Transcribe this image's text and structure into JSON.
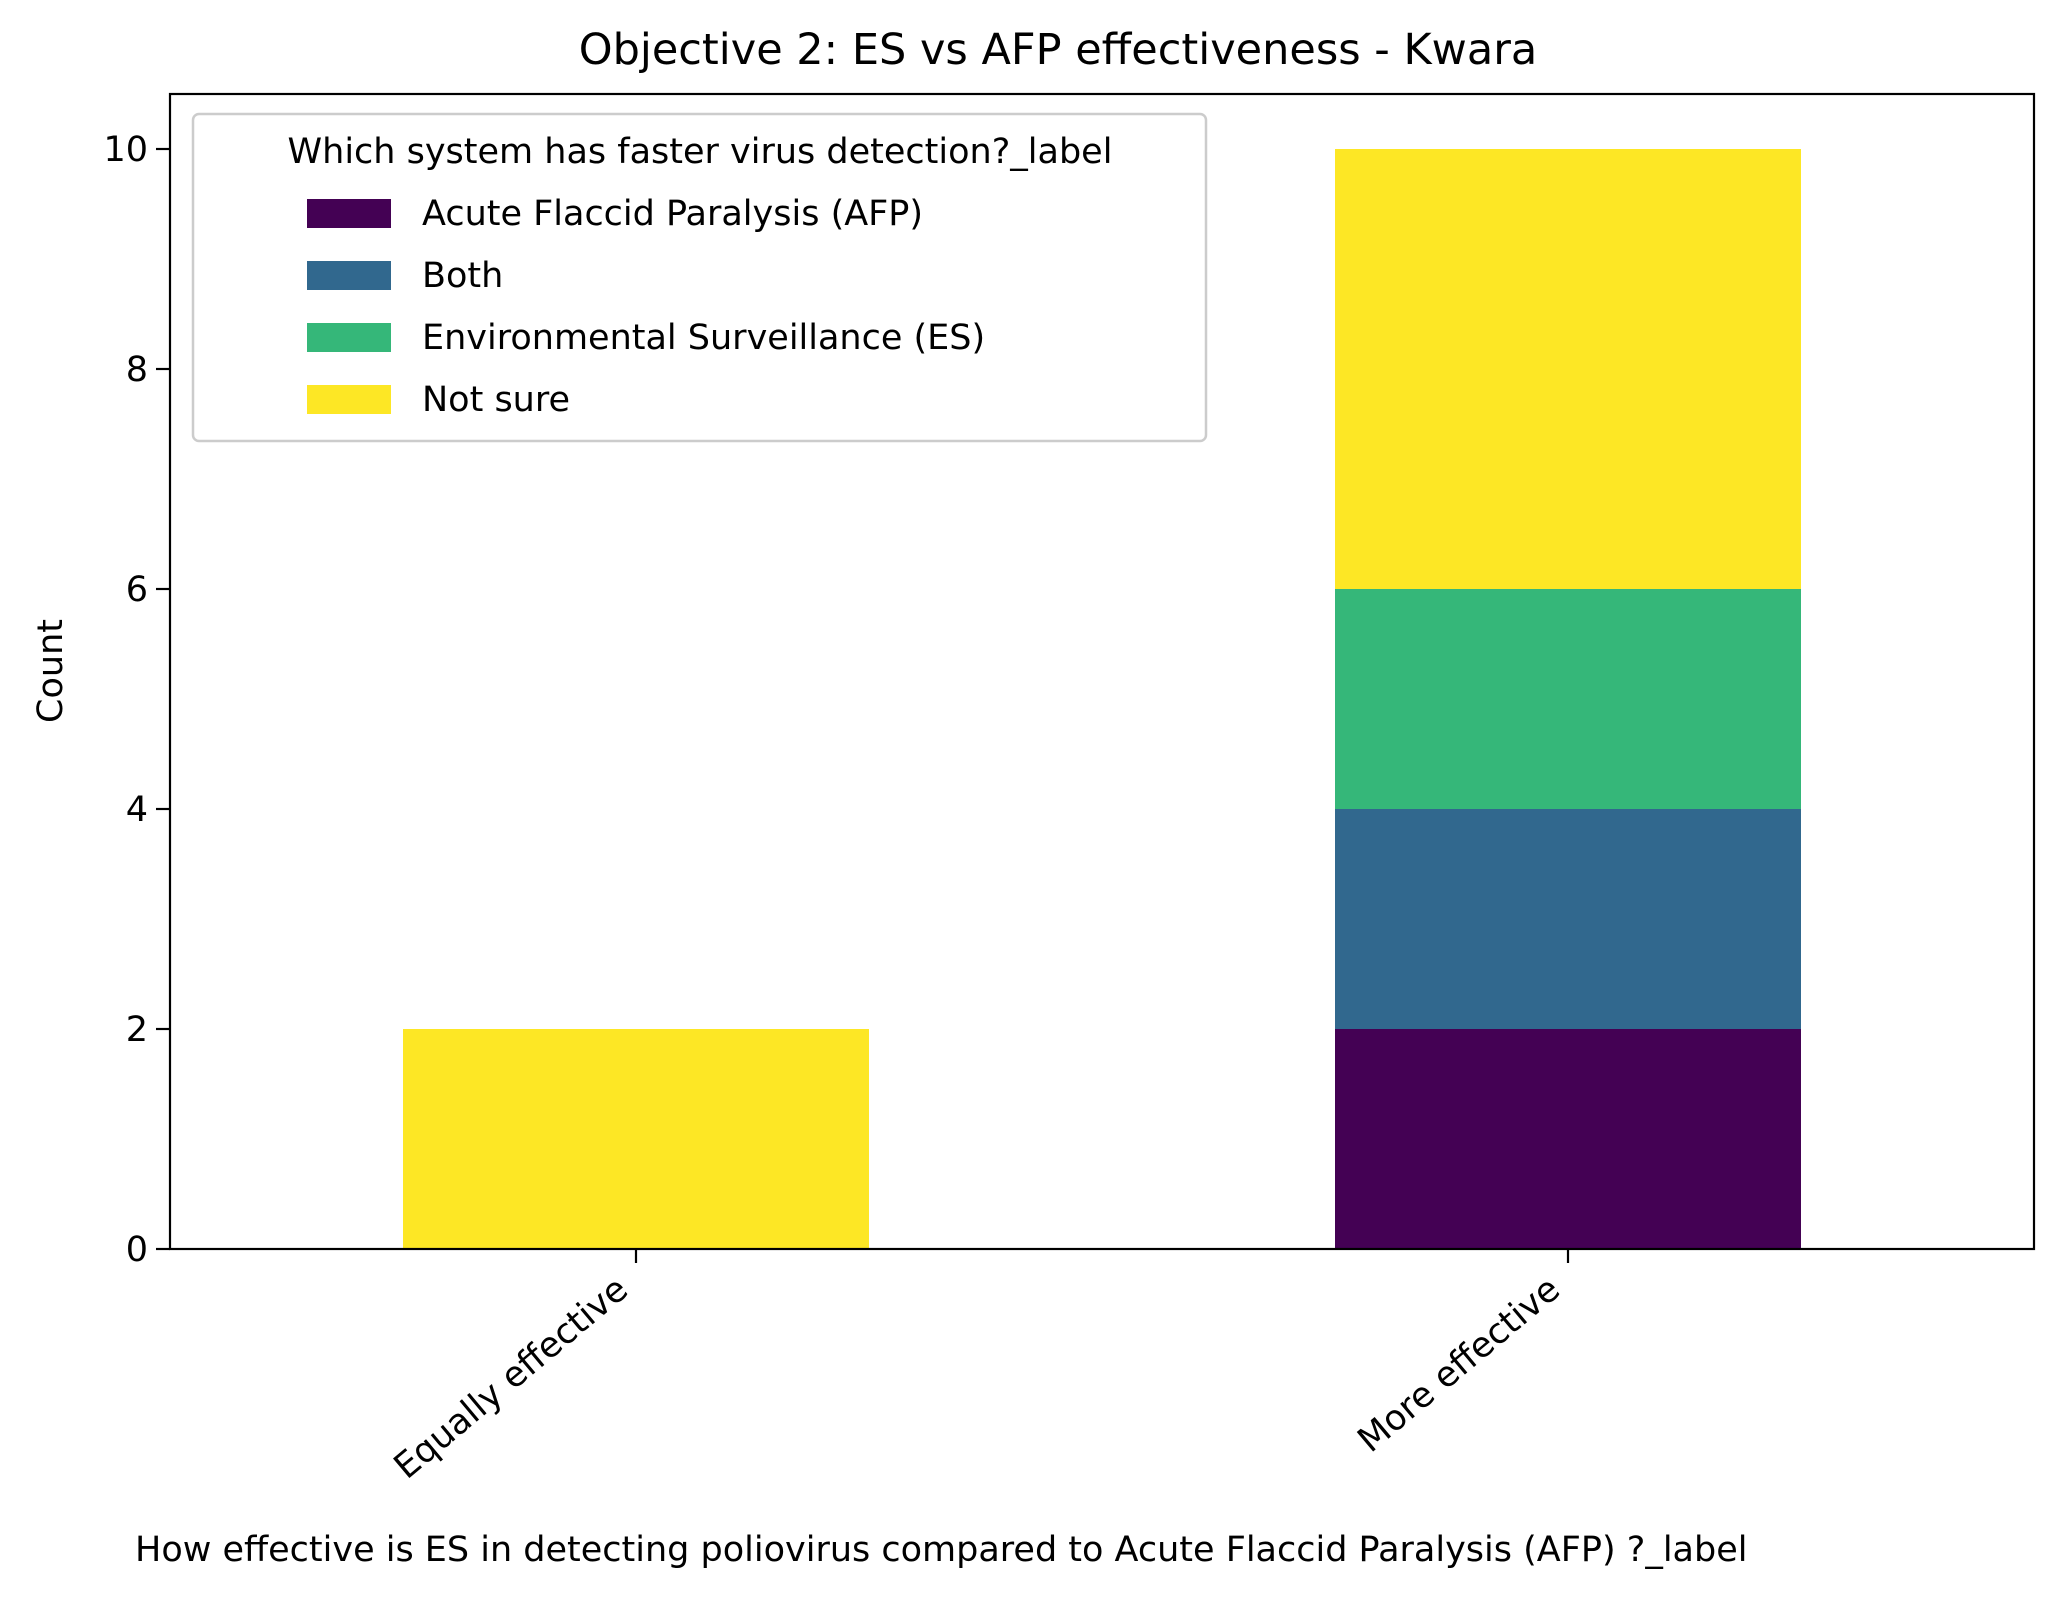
{
  "chart_data": {
    "type": "bar",
    "stacked": true,
    "title": "Objective 2: ES vs AFP effectiveness - Kwara",
    "xlabel": "How effective is ES in detecting poliovirus compared to  Acute Flaccid Paralysis (AFP) ?_label",
    "ylabel": "Count",
    "categories": [
      "Equally effective",
      "More effective"
    ],
    "ylim": [
      0,
      10.5
    ],
    "yticks": [
      0,
      2,
      4,
      6,
      8,
      10
    ],
    "grid": false,
    "legend": {
      "title": "Which system has faster virus detection?_label",
      "placement": "top-left"
    },
    "series": [
      {
        "name": "Acute Flaccid Paralysis (AFP)",
        "color": "#440154",
        "values": [
          0,
          2
        ]
      },
      {
        "name": "Both",
        "color": "#31688e",
        "values": [
          0,
          2
        ]
      },
      {
        "name": "Environmental Surveillance (ES)",
        "color": "#35b779",
        "values": [
          0,
          2
        ]
      },
      {
        "name": "Not sure",
        "color": "#fde725",
        "values": [
          2,
          4
        ]
      }
    ]
  }
}
